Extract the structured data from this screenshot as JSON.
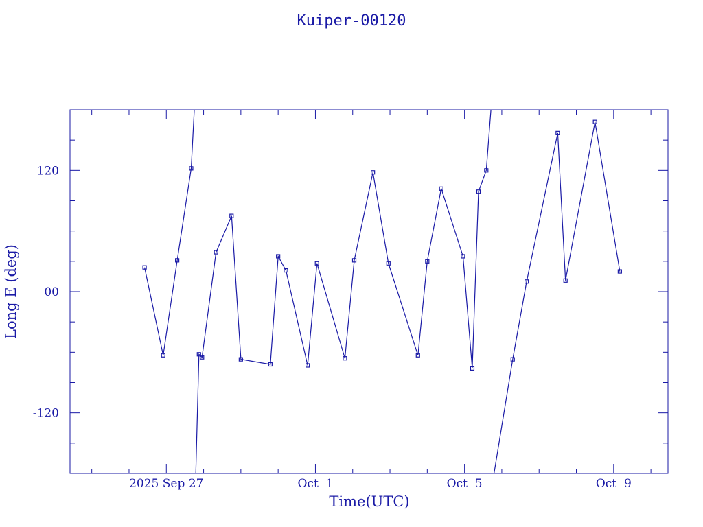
{
  "chart_data": {
    "type": "line",
    "title": "Kuiper-00120",
    "xlabel": "Time(UTC)",
    "ylabel": "Long E (deg)",
    "x_tick_labels": [
      "2025 Sep 27",
      "Oct  1",
      "Oct  5",
      "Oct  9"
    ],
    "x_tick_dates": [
      "2025-09-27",
      "2025-10-01",
      "2025-10-05",
      "2025-10-09"
    ],
    "xlim": [
      "2025-09-24 10:00",
      "2025-10-10 11:00"
    ],
    "y_ticks": [
      120,
      0,
      -120
    ],
    "y_tick_labels": [
      "120",
      "00",
      "-120"
    ],
    "ylim": [
      -180,
      180
    ],
    "grid": false,
    "color": "#1a1aa6",
    "series": [
      {
        "points": [
          [
            "2025-09-26 10:00",
            24
          ],
          [
            "2025-09-26 22:00",
            -63
          ],
          [
            "2025-09-27 07:00",
            31
          ],
          [
            "2025-09-27 16:00",
            122
          ],
          [
            "2025-09-27 18:00",
            180
          ]
        ]
      },
      {
        "points": [
          [
            "2025-09-27 19:00",
            -180
          ],
          [
            "2025-09-27 21:00",
            -62
          ],
          [
            "2025-09-27 23:00",
            -65
          ],
          [
            "2025-09-28 08:00",
            39
          ],
          [
            "2025-09-28 18:00",
            75
          ],
          [
            "2025-09-29 00:00",
            -67
          ],
          [
            "2025-09-29 19:00",
            -72
          ],
          [
            "2025-09-30 00:00",
            35
          ],
          [
            "2025-09-30 05:00",
            21
          ],
          [
            "2025-09-30 19:00",
            -73
          ],
          [
            "2025-10-01 01:00",
            28
          ],
          [
            "2025-10-01 19:00",
            -66
          ],
          [
            "2025-10-02 01:00",
            31
          ],
          [
            "2025-10-02 13:00",
            118
          ],
          [
            "2025-10-02 23:00",
            28
          ],
          [
            "2025-10-03 18:00",
            -63
          ],
          [
            "2025-10-04 00:00",
            30
          ],
          [
            "2025-10-04 09:00",
            102
          ],
          [
            "2025-10-04 23:00",
            35
          ],
          [
            "2025-10-05 05:00",
            -76
          ],
          [
            "2025-10-05 09:00",
            99
          ],
          [
            "2025-10-05 14:00",
            120
          ],
          [
            "2025-10-05 17:00",
            180
          ]
        ]
      },
      {
        "points": [
          [
            "2025-10-05 19:00",
            -180
          ],
          [
            "2025-10-06 07:00",
            -67
          ],
          [
            "2025-10-06 16:00",
            10
          ],
          [
            "2025-10-07 12:00",
            157
          ],
          [
            "2025-10-07 17:00",
            11
          ],
          [
            "2025-10-08 12:00",
            168
          ],
          [
            "2025-10-09 04:00",
            20
          ]
        ]
      }
    ]
  }
}
